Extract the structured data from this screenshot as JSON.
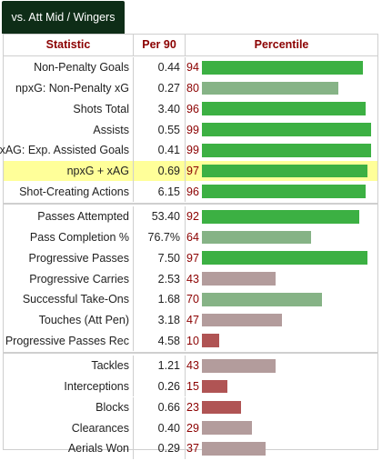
{
  "tab": {
    "label": "vs. Att Mid / Wingers"
  },
  "header": {
    "statistic": "Statistic",
    "per90": "Per 90",
    "percentile": "Percentile"
  },
  "colors": {
    "high": "#3cb043",
    "mid": "#86b386",
    "low": "#b39c9c",
    "lowest": "#b05454",
    "highlight": "#ffff99"
  },
  "groups": [
    {
      "rows": [
        {
          "stat": "Non-Penalty Goals",
          "per90": "0.44",
          "percentile": "94"
        },
        {
          "stat": "npxG: Non-Penalty xG",
          "per90": "0.27",
          "percentile": "80"
        },
        {
          "stat": "Shots Total",
          "per90": "3.40",
          "percentile": "96"
        },
        {
          "stat": "Assists",
          "per90": "0.55",
          "percentile": "99"
        },
        {
          "stat": "xAG: Exp. Assisted Goals",
          "per90": "0.41",
          "percentile": "99"
        },
        {
          "stat": "npxG + xAG",
          "per90": "0.69",
          "percentile": "97",
          "highlight": true
        },
        {
          "stat": "Shot-Creating Actions",
          "per90": "6.15",
          "percentile": "96"
        }
      ]
    },
    {
      "rows": [
        {
          "stat": "Passes Attempted",
          "per90": "53.40",
          "percentile": "92"
        },
        {
          "stat": "Pass Completion %",
          "per90": "76.7%",
          "percentile": "64"
        },
        {
          "stat": "Progressive Passes",
          "per90": "7.50",
          "percentile": "97"
        },
        {
          "stat": "Progressive Carries",
          "per90": "2.53",
          "percentile": "43"
        },
        {
          "stat": "Successful Take-Ons",
          "per90": "1.68",
          "percentile": "70"
        },
        {
          "stat": "Touches (Att Pen)",
          "per90": "3.18",
          "percentile": "47"
        },
        {
          "stat": "Progressive Passes Rec",
          "per90": "4.58",
          "percentile": "10"
        }
      ]
    },
    {
      "rows": [
        {
          "stat": "Tackles",
          "per90": "1.21",
          "percentile": "43"
        },
        {
          "stat": "Interceptions",
          "per90": "0.26",
          "percentile": "15"
        },
        {
          "stat": "Blocks",
          "per90": "0.66",
          "percentile": "23"
        },
        {
          "stat": "Clearances",
          "per90": "0.40",
          "percentile": "29"
        },
        {
          "stat": "Aerials Won",
          "per90": "0.29",
          "percentile": "37"
        }
      ]
    }
  ]
}
